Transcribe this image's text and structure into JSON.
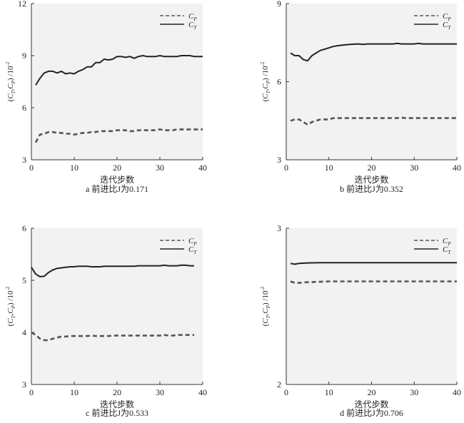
{
  "panels": [
    {
      "caption": "a 前进比J为0.171",
      "xlabel": "迭代步数",
      "ylabel": "(CT,CP) /10-2",
      "ylabel_parts": {
        "open": "(",
        "c1": "C",
        "s1": "T",
        "comma": ",",
        "c2": "C",
        "s2": "P",
        "close": ")",
        "unit": "/10",
        "exp": "-2"
      },
      "legend": [
        {
          "base": "C",
          "sub": "P"
        },
        {
          "base": "C",
          "sub": "T"
        }
      ],
      "xticks": [
        "0",
        "10",
        "20",
        "30",
        "40"
      ],
      "yticks": [
        "3",
        "6",
        "9",
        "12"
      ]
    },
    {
      "caption": "b 前进比J为0.352",
      "xlabel": "迭代步数",
      "ylabel": "(CT,CP) /10-2",
      "ylabel_parts": {
        "open": "(",
        "c1": "C",
        "s1": "T",
        "comma": ",",
        "c2": "C",
        "s2": "P",
        "close": ")",
        "unit": "/10",
        "exp": "-2"
      },
      "legend": [
        {
          "base": "C",
          "sub": "P"
        },
        {
          "base": "C",
          "sub": "T"
        }
      ],
      "xticks": [
        "0",
        "10",
        "20",
        "30",
        "40"
      ],
      "yticks": [
        "3",
        "6",
        "9"
      ]
    },
    {
      "caption": "c 前进比J为0.533",
      "xlabel": "迭代步数",
      "ylabel": "(CT,CP) /10-2",
      "ylabel_parts": {
        "open": "(",
        "c1": "C",
        "s1": "T",
        "comma": ",",
        "c2": "C",
        "s2": "P",
        "close": ")",
        "unit": "/10",
        "exp": "-2"
      },
      "legend": [
        {
          "base": "C",
          "sub": "P"
        },
        {
          "base": "C",
          "sub": "T"
        }
      ],
      "xticks": [
        "0",
        "10",
        "20",
        "30",
        "40"
      ],
      "yticks": [
        "3",
        "4",
        "5",
        "6"
      ]
    },
    {
      "caption": "d 前进比J为0.706",
      "xlabel": "迭代步数",
      "ylabel": "(CT,CP) /10-2",
      "ylabel_parts": {
        "open": "(",
        "c1": "C",
        "s1": "T",
        "comma": ",",
        "c2": "C",
        "s2": "P",
        "close": ")",
        "unit": "/10",
        "exp": "-2"
      },
      "legend": [
        {
          "base": "C",
          "sub": "P"
        },
        {
          "base": "C",
          "sub": "T"
        }
      ],
      "xticks": [
        "0",
        "10",
        "20",
        "30",
        "40"
      ],
      "yticks": [
        "2",
        "3"
      ]
    }
  ],
  "colors": {
    "plot_bg": "#f2f2f2",
    "line": "#222222",
    "dashed": "#555555"
  },
  "chart_data": [
    {
      "type": "line",
      "xlim": [
        0,
        40
      ],
      "ylim": [
        3,
        12
      ],
      "grid": false,
      "legend_position": "top-right",
      "series": [
        {
          "name": "CP",
          "style": "dashed",
          "x": [
            1,
            2,
            3,
            4,
            5,
            6,
            7,
            8,
            9,
            10,
            11,
            12,
            13,
            14,
            15,
            16,
            17,
            18,
            19,
            20,
            21,
            22,
            23,
            24,
            25,
            26,
            27,
            28,
            29,
            30,
            31,
            32,
            33,
            34,
            35,
            36,
            37,
            38,
            39,
            40
          ],
          "y": [
            4.0,
            4.45,
            4.5,
            4.6,
            4.6,
            4.55,
            4.55,
            4.5,
            4.5,
            4.45,
            4.5,
            4.55,
            4.55,
            4.6,
            4.6,
            4.65,
            4.65,
            4.65,
            4.65,
            4.7,
            4.7,
            4.7,
            4.65,
            4.65,
            4.7,
            4.7,
            4.7,
            4.7,
            4.7,
            4.75,
            4.7,
            4.7,
            4.7,
            4.75,
            4.75,
            4.75,
            4.75,
            4.75,
            4.75,
            4.75
          ]
        },
        {
          "name": "CT",
          "style": "solid",
          "x": [
            1,
            2,
            3,
            4,
            5,
            6,
            7,
            8,
            9,
            10,
            11,
            12,
            13,
            14,
            15,
            16,
            17,
            18,
            19,
            20,
            21,
            22,
            23,
            24,
            25,
            26,
            27,
            28,
            29,
            30,
            31,
            32,
            33,
            34,
            35,
            36,
            37,
            38,
            39,
            40
          ],
          "y": [
            7.3,
            7.7,
            8.0,
            8.1,
            8.1,
            8.0,
            8.1,
            7.95,
            8.0,
            7.95,
            8.1,
            8.2,
            8.35,
            8.35,
            8.6,
            8.6,
            8.8,
            8.75,
            8.8,
            8.95,
            8.95,
            8.9,
            8.95,
            8.85,
            8.95,
            9.0,
            8.95,
            8.95,
            8.95,
            9.0,
            8.95,
            8.95,
            8.95,
            8.95,
            9.0,
            9.0,
            9.0,
            8.95,
            8.95,
            8.95
          ]
        }
      ]
    },
    {
      "type": "line",
      "xlim": [
        0,
        40
      ],
      "ylim": [
        3,
        9
      ],
      "grid": false,
      "legend_position": "top-right",
      "series": [
        {
          "name": "CP",
          "style": "dashed",
          "x": [
            1,
            2,
            3,
            4,
            5,
            6,
            7,
            8,
            9,
            10,
            11,
            12,
            13,
            14,
            15,
            16,
            17,
            18,
            19,
            20,
            21,
            22,
            23,
            24,
            25,
            26,
            27,
            28,
            29,
            30,
            31,
            32,
            33,
            34,
            35,
            36,
            37,
            38,
            39,
            40
          ],
          "y": [
            4.5,
            4.55,
            4.55,
            4.45,
            4.35,
            4.45,
            4.5,
            4.55,
            4.55,
            4.55,
            4.6,
            4.6,
            4.6,
            4.6,
            4.6,
            4.6,
            4.6,
            4.6,
            4.6,
            4.6,
            4.6,
            4.6,
            4.6,
            4.6,
            4.6,
            4.6,
            4.62,
            4.6,
            4.6,
            4.6,
            4.6,
            4.6,
            4.6,
            4.6,
            4.6,
            4.6,
            4.6,
            4.6,
            4.6,
            4.6
          ]
        },
        {
          "name": "CT",
          "style": "solid",
          "x": [
            1,
            2,
            3,
            4,
            5,
            6,
            7,
            8,
            9,
            10,
            11,
            12,
            13,
            14,
            15,
            16,
            17,
            18,
            19,
            20,
            21,
            22,
            23,
            24,
            25,
            26,
            27,
            28,
            29,
            30,
            31,
            32,
            33,
            34,
            35,
            36,
            37,
            38,
            39,
            40
          ],
          "y": [
            7.1,
            7.0,
            7.0,
            6.85,
            6.8,
            7.0,
            7.1,
            7.2,
            7.25,
            7.3,
            7.35,
            7.38,
            7.4,
            7.42,
            7.43,
            7.44,
            7.45,
            7.43,
            7.45,
            7.45,
            7.45,
            7.45,
            7.45,
            7.45,
            7.45,
            7.47,
            7.45,
            7.45,
            7.45,
            7.45,
            7.47,
            7.45,
            7.45,
            7.45,
            7.45,
            7.45,
            7.45,
            7.45,
            7.45,
            7.45
          ]
        }
      ]
    },
    {
      "type": "line",
      "xlim": [
        0,
        40
      ],
      "ylim": [
        3,
        6
      ],
      "grid": false,
      "legend_position": "top-right",
      "series": [
        {
          "name": "CP",
          "style": "dashed",
          "x": [
            0,
            1,
            2,
            3,
            4,
            5,
            6,
            7,
            8,
            9,
            10,
            11,
            12,
            13,
            14,
            15,
            16,
            17,
            18,
            19,
            20,
            21,
            22,
            23,
            24,
            25,
            26,
            27,
            28,
            29,
            30,
            31,
            32,
            33,
            34,
            35,
            36,
            37,
            38
          ],
          "y": [
            4.0,
            3.95,
            3.88,
            3.85,
            3.85,
            3.88,
            3.9,
            3.92,
            3.92,
            3.93,
            3.93,
            3.93,
            3.93,
            3.93,
            3.94,
            3.93,
            3.93,
            3.93,
            3.93,
            3.94,
            3.94,
            3.94,
            3.94,
            3.94,
            3.94,
            3.94,
            3.94,
            3.94,
            3.94,
            3.94,
            3.94,
            3.95,
            3.94,
            3.94,
            3.95,
            3.95,
            3.95,
            3.95,
            3.95
          ]
        },
        {
          "name": "CT",
          "style": "solid",
          "x": [
            0,
            1,
            2,
            3,
            4,
            5,
            6,
            7,
            8,
            9,
            10,
            11,
            12,
            13,
            14,
            15,
            16,
            17,
            18,
            19,
            20,
            21,
            22,
            23,
            24,
            25,
            26,
            27,
            28,
            29,
            30,
            31,
            32,
            33,
            34,
            35,
            36,
            37,
            38
          ],
          "y": [
            5.25,
            5.12,
            5.07,
            5.08,
            5.15,
            5.2,
            5.23,
            5.24,
            5.25,
            5.26,
            5.26,
            5.27,
            5.27,
            5.27,
            5.26,
            5.26,
            5.26,
            5.27,
            5.27,
            5.27,
            5.27,
            5.27,
            5.27,
            5.27,
            5.27,
            5.28,
            5.28,
            5.28,
            5.28,
            5.28,
            5.28,
            5.29,
            5.28,
            5.28,
            5.28,
            5.29,
            5.29,
            5.28,
            5.28
          ]
        }
      ]
    },
    {
      "type": "line",
      "xlim": [
        0,
        40
      ],
      "ylim": [
        2,
        3
      ],
      "grid": false,
      "legend_position": "top-right",
      "series": [
        {
          "name": "CP",
          "style": "dashed",
          "x": [
            1,
            2,
            3,
            5,
            10,
            15,
            20,
            25,
            30,
            35,
            40
          ],
          "y": [
            2.66,
            2.65,
            2.65,
            2.655,
            2.66,
            2.66,
            2.66,
            2.66,
            2.66,
            2.66,
            2.66
          ]
        },
        {
          "name": "CT",
          "style": "solid",
          "x": [
            1,
            2,
            3,
            5,
            8,
            10,
            15,
            20,
            25,
            30,
            35,
            40
          ],
          "y": [
            2.775,
            2.77,
            2.775,
            2.778,
            2.78,
            2.78,
            2.78,
            2.78,
            2.78,
            2.78,
            2.78,
            2.78
          ]
        }
      ]
    }
  ]
}
